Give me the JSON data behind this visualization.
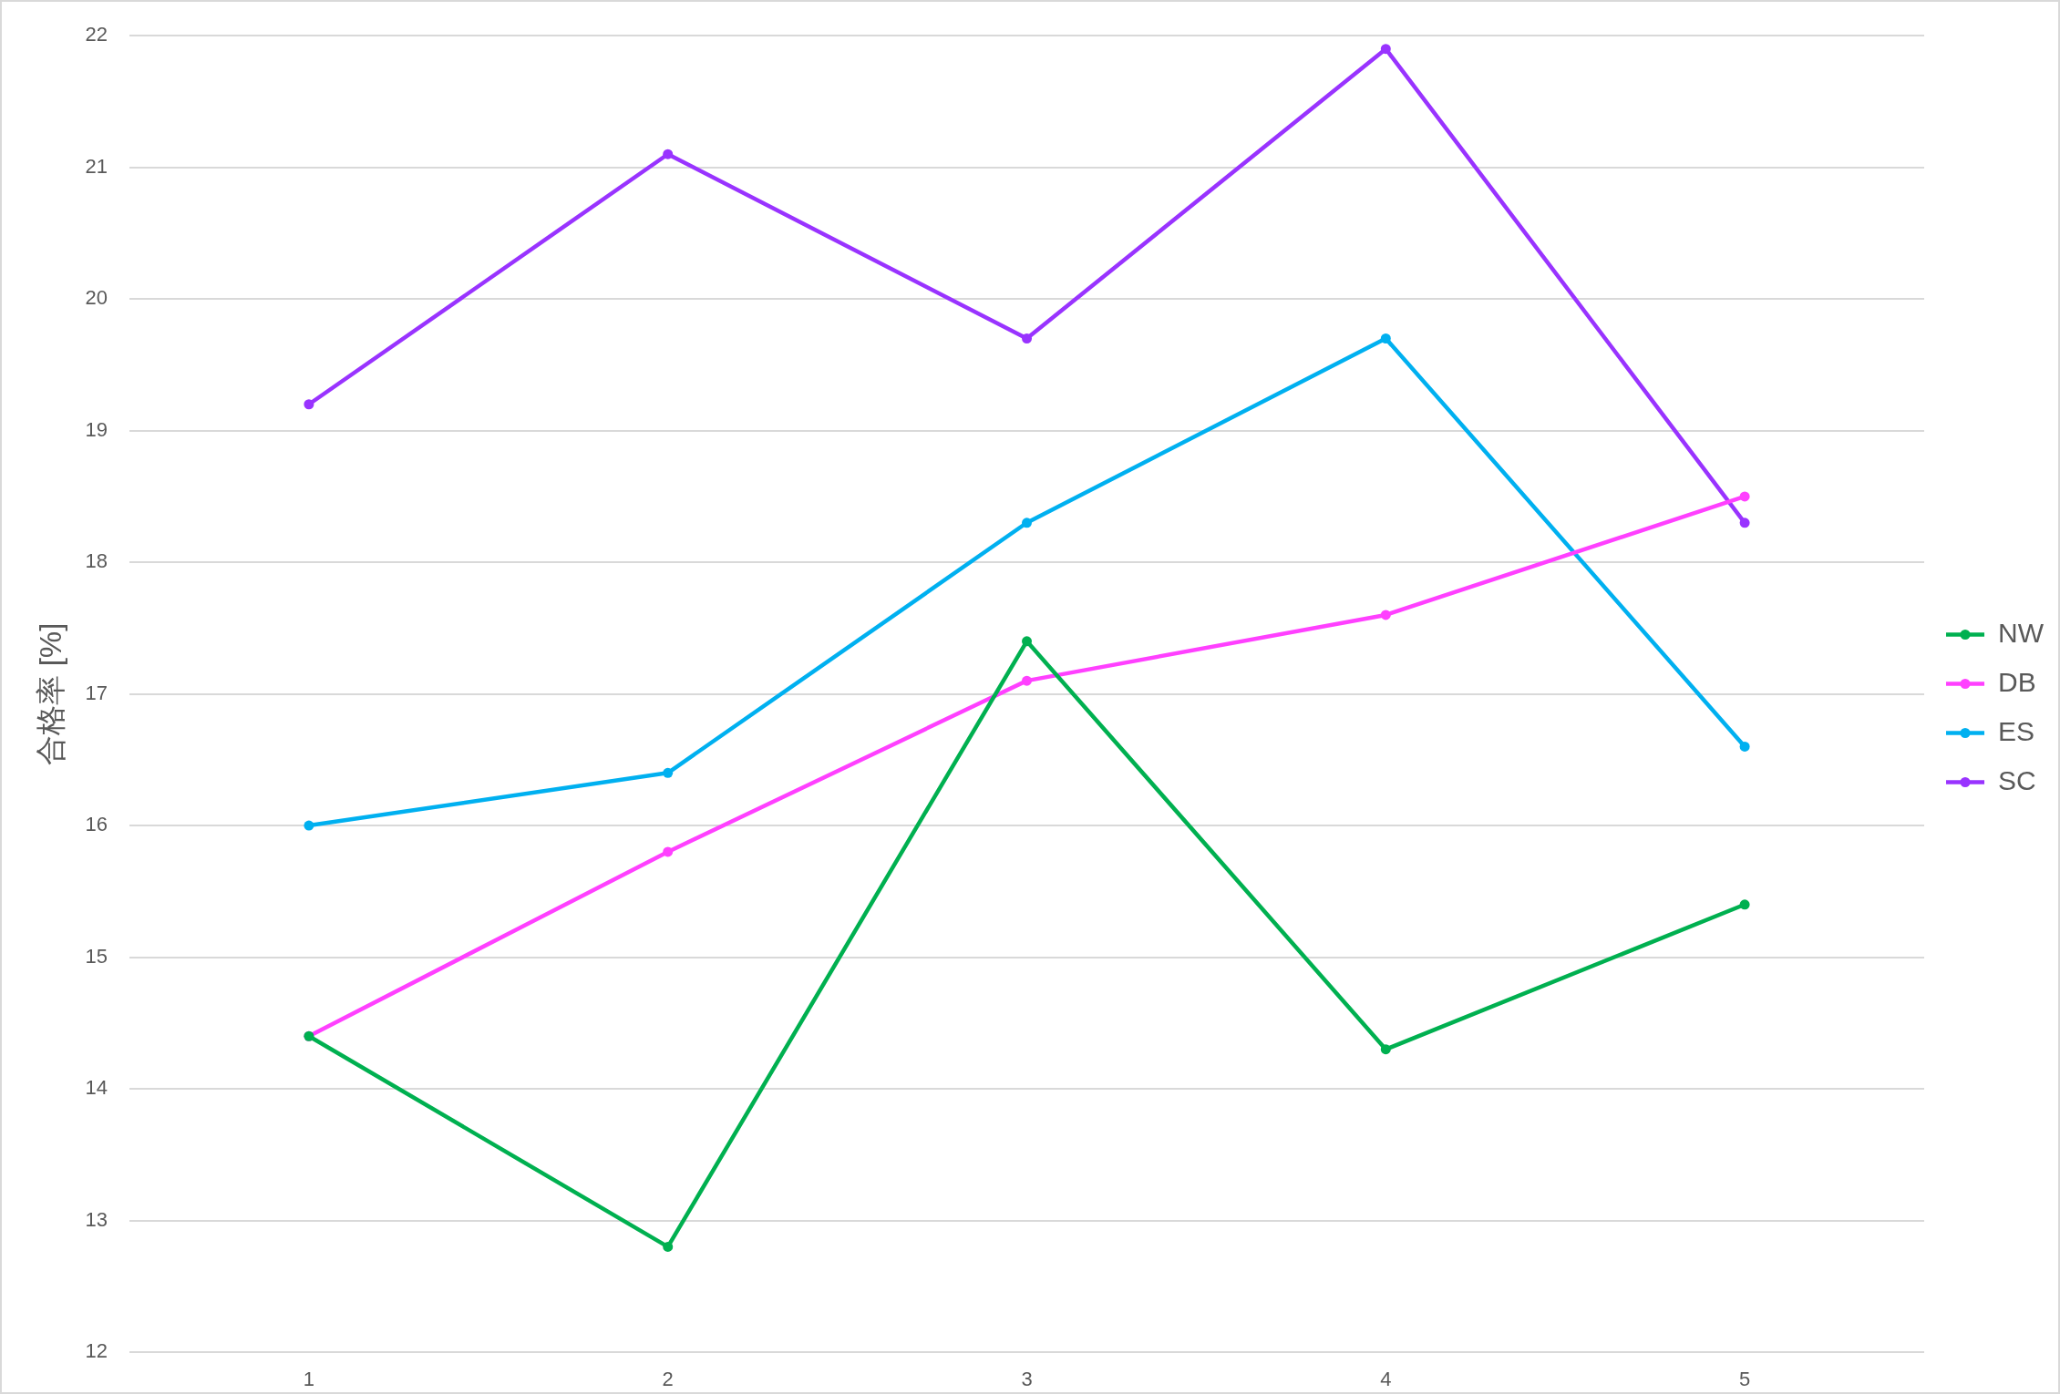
{
  "chart_data": {
    "type": "line",
    "ylabel": "合格率 [%]",
    "categories": [
      "1",
      "2",
      "3",
      "4",
      "5"
    ],
    "series": [
      {
        "name": "NW",
        "color": "#00b050",
        "values": [
          14.4,
          12.8,
          17.4,
          14.3,
          15.4
        ]
      },
      {
        "name": "DB",
        "color": "#ff40ff",
        "values": [
          14.4,
          15.8,
          17.1,
          17.6,
          18.5
        ]
      },
      {
        "name": "ES",
        "color": "#00b0f0",
        "values": [
          16.0,
          16.4,
          18.3,
          19.7,
          16.6
        ]
      },
      {
        "name": "SC",
        "color": "#9933ff",
        "values": [
          19.2,
          21.1,
          19.7,
          21.9,
          18.3
        ]
      }
    ],
    "ylim": [
      12,
      22
    ],
    "yticks": [
      12,
      13,
      14,
      15,
      16,
      17,
      18,
      19,
      20,
      21,
      22
    ],
    "grid": "y",
    "legend": "right",
    "marker": "circle",
    "line_style": "solid"
  }
}
